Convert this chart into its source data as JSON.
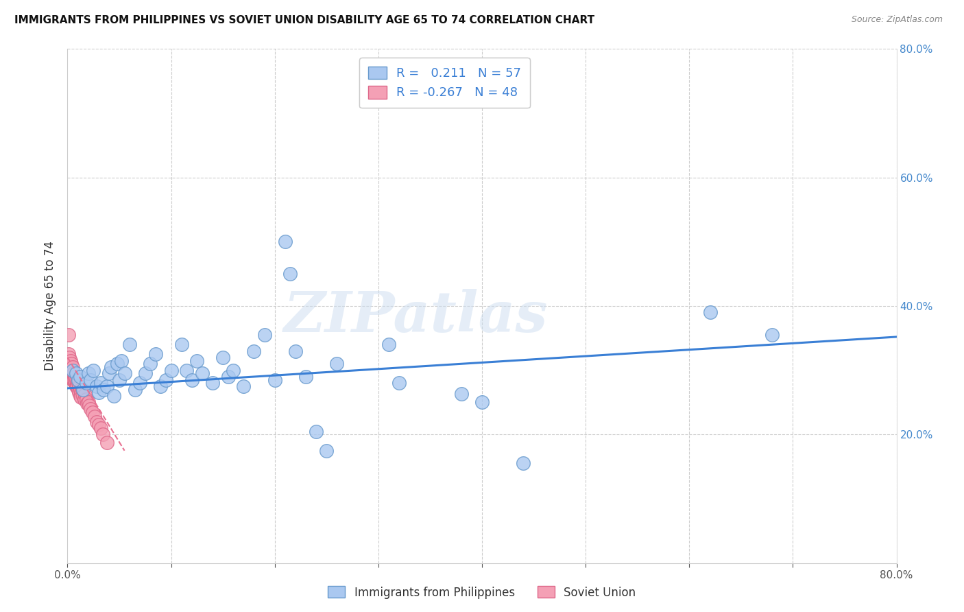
{
  "title": "IMMIGRANTS FROM PHILIPPINES VS SOVIET UNION DISABILITY AGE 65 TO 74 CORRELATION CHART",
  "source": "Source: ZipAtlas.com",
  "ylabel": "Disability Age 65 to 74",
  "xlim": [
    0,
    0.8
  ],
  "ylim": [
    0,
    0.8
  ],
  "philippines_R": 0.211,
  "philippines_N": 57,
  "soviet_R": -0.267,
  "soviet_N": 48,
  "philippines_color": "#aac8f0",
  "philippines_edge": "#6699cc",
  "soviet_color": "#f4a0b5",
  "soviet_edge": "#dd6688",
  "trend_blue": "#3a7fd5",
  "trend_pink": "#e87090",
  "background_color": "#ffffff",
  "grid_color": "#cccccc",
  "phil_x": [
    0.005,
    0.008,
    0.01,
    0.012,
    0.015,
    0.018,
    0.02,
    0.022,
    0.025,
    0.028,
    0.03,
    0.032,
    0.035,
    0.038,
    0.04,
    0.042,
    0.045,
    0.048,
    0.05,
    0.052,
    0.055,
    0.06,
    0.065,
    0.07,
    0.075,
    0.08,
    0.085,
    0.09,
    0.095,
    0.1,
    0.11,
    0.115,
    0.12,
    0.125,
    0.13,
    0.14,
    0.15,
    0.155,
    0.16,
    0.17,
    0.18,
    0.19,
    0.2,
    0.21,
    0.215,
    0.22,
    0.23,
    0.24,
    0.25,
    0.26,
    0.31,
    0.32,
    0.38,
    0.4,
    0.44,
    0.62,
    0.68
  ],
  "phil_y": [
    0.3,
    0.295,
    0.285,
    0.29,
    0.27,
    0.28,
    0.295,
    0.285,
    0.3,
    0.275,
    0.265,
    0.28,
    0.27,
    0.275,
    0.295,
    0.305,
    0.26,
    0.31,
    0.285,
    0.315,
    0.295,
    0.34,
    0.27,
    0.28,
    0.295,
    0.31,
    0.325,
    0.275,
    0.285,
    0.3,
    0.34,
    0.3,
    0.285,
    0.315,
    0.295,
    0.28,
    0.32,
    0.29,
    0.3,
    0.275,
    0.33,
    0.355,
    0.285,
    0.5,
    0.45,
    0.33,
    0.29,
    0.205,
    0.175,
    0.31,
    0.34,
    0.28,
    0.263,
    0.25,
    0.155,
    0.39,
    0.355
  ],
  "sov_x": [
    0.001,
    0.001,
    0.002,
    0.002,
    0.002,
    0.003,
    0.003,
    0.003,
    0.004,
    0.004,
    0.004,
    0.005,
    0.005,
    0.005,
    0.006,
    0.006,
    0.006,
    0.007,
    0.007,
    0.007,
    0.008,
    0.008,
    0.009,
    0.009,
    0.01,
    0.01,
    0.011,
    0.011,
    0.012,
    0.012,
    0.013,
    0.013,
    0.014,
    0.015,
    0.016,
    0.017,
    0.018,
    0.019,
    0.02,
    0.021,
    0.022,
    0.024,
    0.026,
    0.028,
    0.03,
    0.032,
    0.034,
    0.038
  ],
  "sov_y": [
    0.355,
    0.325,
    0.31,
    0.295,
    0.32,
    0.305,
    0.295,
    0.315,
    0.3,
    0.29,
    0.31,
    0.295,
    0.285,
    0.305,
    0.29,
    0.285,
    0.295,
    0.28,
    0.29,
    0.285,
    0.275,
    0.285,
    0.28,
    0.275,
    0.27,
    0.28,
    0.275,
    0.265,
    0.27,
    0.26,
    0.265,
    0.258,
    0.27,
    0.26,
    0.255,
    0.262,
    0.255,
    0.248,
    0.25,
    0.245,
    0.24,
    0.235,
    0.228,
    0.22,
    0.215,
    0.21,
    0.2,
    0.188
  ],
  "legend_label1": "Immigrants from Philippines",
  "legend_label2": "Soviet Union"
}
